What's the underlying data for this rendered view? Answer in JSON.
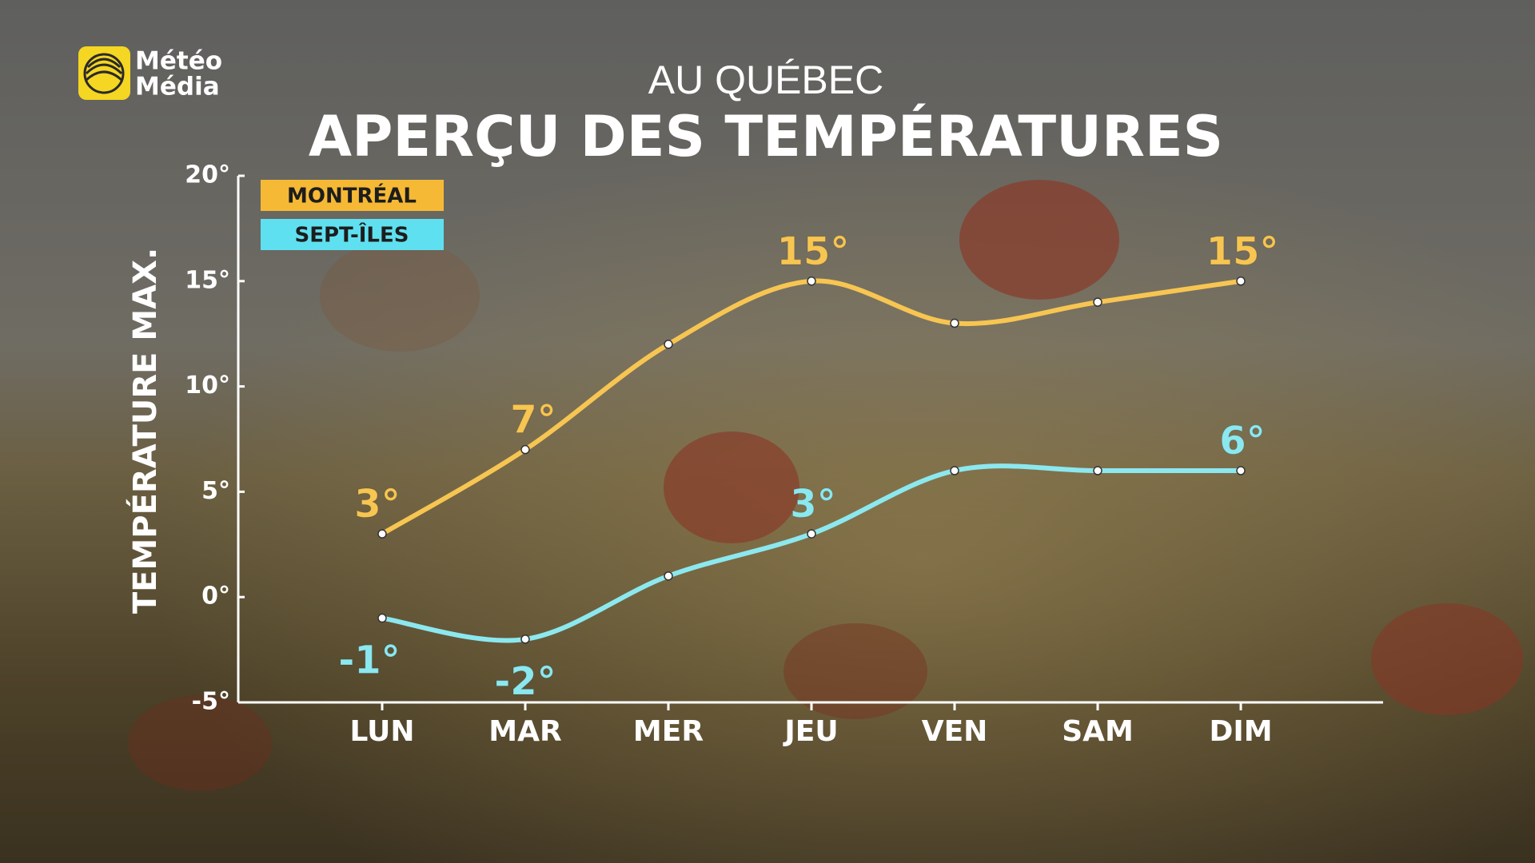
{
  "logo": [
    "Météo",
    "Média"
  ],
  "chart_data": {
    "type": "line",
    "subtitle": "AU QUÉBEC",
    "title": "APERÇU DES TEMPÉRATURES",
    "y_label": "TEMPÉRATURE MAX.",
    "categories": [
      "LUN",
      "MAR",
      "MER",
      "JEU",
      "VEN",
      "SAM",
      "DIM"
    ],
    "series": [
      {
        "name": "MONTRÉAL",
        "color": "#f7c552",
        "legend_color": "#f5b935",
        "values": [
          3,
          7,
          12,
          15,
          13,
          14,
          15
        ],
        "value_labels": [
          "3°",
          "7°",
          null,
          "15°",
          null,
          null,
          "15°"
        ]
      },
      {
        "name": "SEPT-ÎLES",
        "color": "#8ce8ef",
        "legend_color": "#5fe0f0",
        "values": [
          -1,
          -2,
          1,
          3,
          6,
          6,
          6
        ],
        "value_labels": [
          "-1°",
          "-2°",
          null,
          "3°",
          null,
          null,
          "6°"
        ]
      }
    ],
    "ylim": [
      -5,
      20
    ],
    "yticks": [
      {
        "value": -5,
        "label": "-5°"
      },
      {
        "value": 0,
        "label": "0°"
      },
      {
        "value": 5,
        "label": "5°"
      },
      {
        "value": 10,
        "label": "10°"
      },
      {
        "value": 15,
        "label": "15°"
      },
      {
        "value": 20,
        "label": "20°"
      }
    ],
    "legend": "upper left"
  }
}
